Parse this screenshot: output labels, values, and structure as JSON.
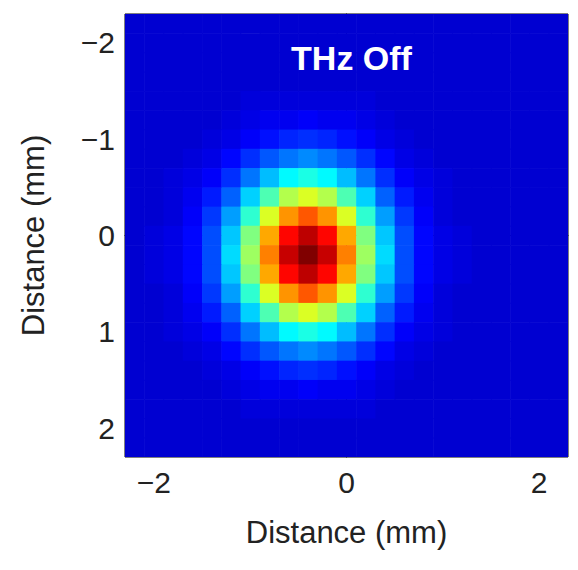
{
  "chart_data": {
    "type": "heatmap",
    "title": "THz Off",
    "xlabel": "Distance (mm)",
    "ylabel": "Distance (mm)",
    "xlim": [
      -2.3,
      2.3
    ],
    "ylim": [
      2.3,
      -2.3
    ],
    "xticks": [
      {
        "value": -2,
        "label": "−2"
      },
      0,
      2
    ],
    "yticks": [
      {
        "value": -2,
        "label": "−2"
      },
      {
        "value": -1,
        "label": "−1"
      },
      0,
      1,
      2
    ],
    "grid": false,
    "color_range": [
      0,
      100
    ],
    "x": [
      -2.2,
      -2.0,
      -1.8,
      -1.6,
      -1.4,
      -1.2,
      -1.0,
      -0.8,
      -0.6,
      -0.4,
      -0.2,
      0.0,
      0.2,
      0.4,
      0.6,
      0.8,
      1.0,
      1.2,
      1.4,
      1.6,
      1.8,
      2.0,
      2.2
    ],
    "y": [
      -2.2,
      -2.0,
      -1.8,
      -1.6,
      -1.4,
      -1.2,
      -1.0,
      -0.8,
      -0.6,
      -0.4,
      -0.2,
      0.0,
      0.2,
      0.4,
      0.6,
      0.8,
      1.0,
      1.2,
      1.4,
      1.6,
      1.8,
      2.0,
      2.2
    ],
    "cells": [
      [
        8,
        8,
        8,
        8,
        8,
        8,
        8,
        8,
        8,
        8,
        8,
        8,
        8,
        8,
        8,
        8,
        8,
        8,
        8,
        8,
        8,
        8,
        8
      ],
      [
        8,
        8,
        8,
        8,
        8,
        8,
        8,
        8,
        8,
        8,
        8,
        8,
        8,
        8,
        8,
        8,
        8,
        8,
        8,
        8,
        8,
        8,
        8
      ],
      [
        8,
        8,
        8,
        8,
        8,
        8,
        8,
        8,
        8,
        8,
        8,
        8,
        8,
        8,
        8,
        8,
        8,
        8,
        8,
        8,
        8,
        8,
        8
      ],
      [
        8,
        8,
        8,
        8,
        8,
        8,
        8,
        8,
        8,
        8,
        8,
        8,
        8,
        8,
        8,
        8,
        8,
        8,
        8,
        8,
        8,
        8,
        8
      ],
      [
        8,
        8,
        8,
        8,
        8,
        8,
        9,
        9,
        9,
        9,
        9,
        9,
        9,
        8,
        8,
        8,
        8,
        8,
        8,
        8,
        8,
        8,
        8
      ],
      [
        8,
        8,
        8,
        8,
        8,
        9,
        10,
        11,
        11,
        12,
        11,
        11,
        10,
        9,
        8,
        8,
        8,
        8,
        8,
        8,
        8,
        8,
        8
      ],
      [
        8,
        8,
        8,
        8,
        9,
        10,
        12,
        14,
        16,
        17,
        16,
        14,
        12,
        10,
        9,
        8,
        8,
        8,
        8,
        8,
        8,
        8,
        8
      ],
      [
        8,
        8,
        8,
        9,
        10,
        13,
        17,
        21,
        24,
        26,
        24,
        21,
        17,
        13,
        10,
        9,
        8,
        8,
        8,
        8,
        8,
        8,
        8
      ],
      [
        8,
        8,
        9,
        10,
        12,
        17,
        24,
        31,
        37,
        40,
        37,
        31,
        24,
        17,
        12,
        10,
        9,
        8,
        8,
        8,
        8,
        8,
        8
      ],
      [
        8,
        8,
        9,
        11,
        15,
        22,
        33,
        45,
        55,
        59,
        55,
        45,
        33,
        22,
        15,
        11,
        9,
        8,
        8,
        8,
        8,
        8,
        8
      ],
      [
        8,
        8,
        9,
        12,
        18,
        28,
        42,
        59,
        73,
        79,
        73,
        59,
        42,
        28,
        18,
        12,
        9,
        8,
        8,
        8,
        8,
        8,
        8
      ],
      [
        8,
        9,
        10,
        13,
        20,
        32,
        50,
        71,
        87,
        94,
        87,
        71,
        50,
        32,
        20,
        13,
        10,
        9,
        8,
        8,
        8,
        8,
        8
      ],
      [
        8,
        9,
        10,
        13,
        20,
        34,
        53,
        75,
        93,
        100,
        93,
        75,
        53,
        34,
        20,
        13,
        10,
        9,
        8,
        8,
        8,
        8,
        8
      ],
      [
        8,
        9,
        10,
        13,
        20,
        32,
        50,
        71,
        87,
        94,
        87,
        71,
        50,
        32,
        20,
        13,
        10,
        9,
        8,
        8,
        8,
        8,
        8
      ],
      [
        8,
        8,
        9,
        12,
        18,
        28,
        42,
        59,
        73,
        79,
        73,
        59,
        42,
        28,
        18,
        12,
        9,
        8,
        8,
        8,
        8,
        8,
        8
      ],
      [
        8,
        8,
        9,
        11,
        15,
        22,
        33,
        45,
        55,
        59,
        55,
        45,
        33,
        22,
        15,
        11,
        9,
        8,
        8,
        8,
        8,
        8,
        8
      ],
      [
        8,
        8,
        9,
        10,
        12,
        17,
        24,
        31,
        37,
        40,
        37,
        31,
        24,
        17,
        12,
        10,
        9,
        8,
        8,
        8,
        8,
        8,
        8
      ],
      [
        8,
        8,
        8,
        9,
        10,
        13,
        17,
        21,
        24,
        26,
        24,
        21,
        17,
        13,
        10,
        9,
        8,
        8,
        8,
        8,
        8,
        8,
        8
      ],
      [
        8,
        8,
        8,
        8,
        9,
        10,
        12,
        14,
        16,
        17,
        16,
        14,
        12,
        10,
        9,
        8,
        8,
        8,
        8,
        8,
        8,
        8,
        8
      ],
      [
        8,
        8,
        8,
        8,
        8,
        9,
        10,
        11,
        11,
        12,
        11,
        11,
        10,
        9,
        8,
        8,
        8,
        8,
        8,
        8,
        8,
        8,
        8
      ],
      [
        8,
        8,
        8,
        8,
        8,
        8,
        9,
        9,
        9,
        9,
        9,
        9,
        9,
        8,
        8,
        8,
        8,
        8,
        8,
        8,
        8,
        8,
        8
      ],
      [
        8,
        8,
        8,
        8,
        8,
        8,
        8,
        8,
        8,
        8,
        8,
        8,
        8,
        8,
        8,
        8,
        8,
        8,
        8,
        8,
        8,
        8,
        8
      ],
      [
        8,
        8,
        8,
        8,
        8,
        8,
        8,
        8,
        8,
        8,
        8,
        8,
        8,
        8,
        8,
        8,
        8,
        8,
        8,
        8,
        8,
        8,
        8
      ]
    ]
  }
}
